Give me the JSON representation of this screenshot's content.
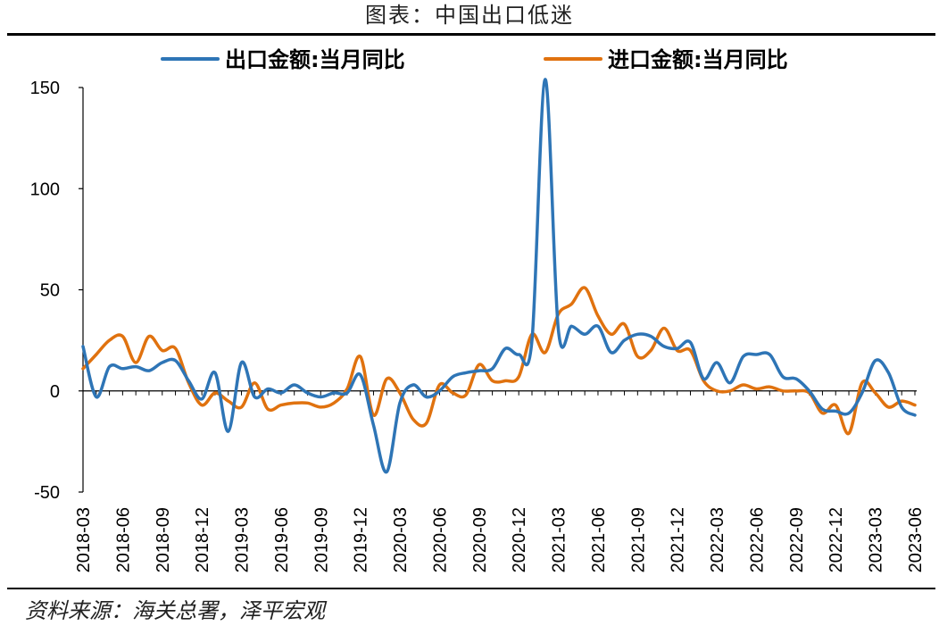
{
  "header": {
    "title": "图表：中国出口低迷"
  },
  "footer": {
    "source": "资料来源：海关总署，泽平宏观"
  },
  "chart_data": {
    "type": "line",
    "title": "图表：中国出口低迷",
    "xlabel": "",
    "ylabel": "",
    "ylim": [
      -50,
      150
    ],
    "yticks": [
      -50,
      0,
      50,
      100,
      150
    ],
    "grid": false,
    "legend_position": "top",
    "x": [
      "2018-03",
      "2018-04",
      "2018-05",
      "2018-06",
      "2018-07",
      "2018-08",
      "2018-09",
      "2018-10",
      "2018-11",
      "2018-12",
      "2019-01",
      "2019-02",
      "2019-03",
      "2019-04",
      "2019-05",
      "2019-06",
      "2019-07",
      "2019-08",
      "2019-09",
      "2019-10",
      "2019-11",
      "2019-12",
      "2020-01",
      "2020-02",
      "2020-03",
      "2020-04",
      "2020-05",
      "2020-06",
      "2020-07",
      "2020-08",
      "2020-09",
      "2020-10",
      "2020-11",
      "2020-12",
      "2021-01",
      "2021-02",
      "2021-03",
      "2021-04",
      "2021-05",
      "2021-06",
      "2021-07",
      "2021-08",
      "2021-09",
      "2021-10",
      "2021-11",
      "2021-12",
      "2022-01",
      "2022-02",
      "2022-03",
      "2022-04",
      "2022-05",
      "2022-06",
      "2022-07",
      "2022-08",
      "2022-09",
      "2022-10",
      "2022-11",
      "2022-12",
      "2023-01",
      "2023-02",
      "2023-03",
      "2023-04",
      "2023-05",
      "2023-06"
    ],
    "x_tick_labels": [
      "2018-03",
      "2018-06",
      "2018-09",
      "2018-12",
      "2019-03",
      "2019-06",
      "2019-09",
      "2019-12",
      "2020-03",
      "2020-06",
      "2020-09",
      "2020-12",
      "2021-03",
      "2021-06",
      "2021-09",
      "2021-12",
      "2022-03",
      "2022-06",
      "2022-09",
      "2022-12",
      "2023-03",
      "2023-06"
    ],
    "series": [
      {
        "name": "出口金额:当月同比",
        "color": "#2e75b6",
        "values": [
          22,
          -3,
          12,
          11,
          12,
          10,
          14,
          15,
          5,
          -4,
          9,
          -20,
          14,
          -3,
          1,
          -1,
          3,
          -1,
          -3,
          -1,
          -1,
          8,
          -17,
          -40,
          -6,
          3,
          -3,
          0,
          7,
          9,
          10,
          11,
          21,
          18,
          25,
          154,
          30,
          32,
          28,
          32,
          19,
          25,
          28,
          27,
          22,
          21,
          24,
          6,
          14,
          4,
          17,
          18,
          18,
          7,
          6,
          0,
          -9,
          -10,
          -11,
          -1,
          15,
          9,
          -8,
          -12
        ]
      },
      {
        "name": "进口金额:当月同比",
        "color": "#e0720f",
        "values": [
          11,
          18,
          25,
          27,
          14,
          27,
          20,
          21,
          4,
          -7,
          -1,
          -5,
          -8,
          4,
          -9,
          -7,
          -6,
          -6,
          -8,
          -6,
          1,
          17,
          -12,
          6,
          -1,
          -14,
          -16,
          3,
          -1,
          -2,
          13,
          5,
          5,
          7,
          28,
          19,
          38,
          43,
          51,
          37,
          28,
          33,
          17,
          20,
          31,
          20,
          20,
          5,
          0,
          0,
          3,
          1,
          2,
          0,
          0,
          -1,
          -11,
          -7,
          -21,
          4,
          -1,
          -8,
          -5,
          -7
        ]
      }
    ]
  }
}
